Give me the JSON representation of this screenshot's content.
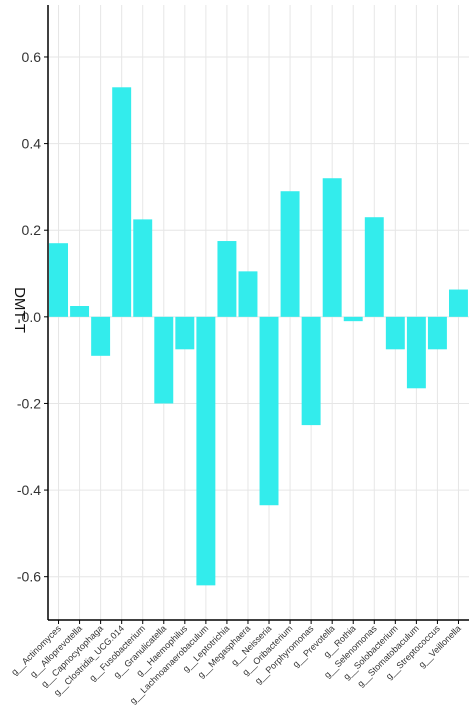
{
  "chart_data": {
    "type": "bar",
    "ylabel": "DMT-T",
    "ylim": [
      -0.7,
      0.72
    ],
    "yticks": [
      -0.6,
      -0.4,
      -0.2,
      0.0,
      0.2,
      0.4,
      0.6
    ],
    "ytick_labels": [
      "-0.6",
      "-0.4",
      "-0.2",
      "0.0",
      "0.2",
      "0.4",
      "0.6"
    ],
    "grid": true,
    "bar_color": "#33ecec",
    "categories": [
      "g__Actinomyces",
      "g__Alloprevotella",
      "g__Capnocytophaga",
      "g__Clostridia_UCG.014",
      "g__Fusobacterium",
      "g__Granulicatella",
      "g__Haemophilus",
      "g__Lachnoanaerobaculum",
      "g__Leptotrichia",
      "g__Megasphaera",
      "g__Neisseria",
      "g__Oribacterium",
      "g__Porphyromonas",
      "g__Prevotella",
      "g__Rothia",
      "g__Selenomonas",
      "g__Solobacterium",
      "g__Stomatobaculum",
      "g__Streptococcus",
      "g__Veillonella"
    ],
    "values": [
      0.17,
      0.025,
      -0.09,
      0.53,
      0.225,
      -0.2,
      -0.075,
      -0.62,
      0.175,
      0.105,
      -0.435,
      0.29,
      -0.25,
      0.32,
      -0.01,
      0.23,
      -0.075,
      -0.165,
      -0.075,
      0.063
    ]
  }
}
